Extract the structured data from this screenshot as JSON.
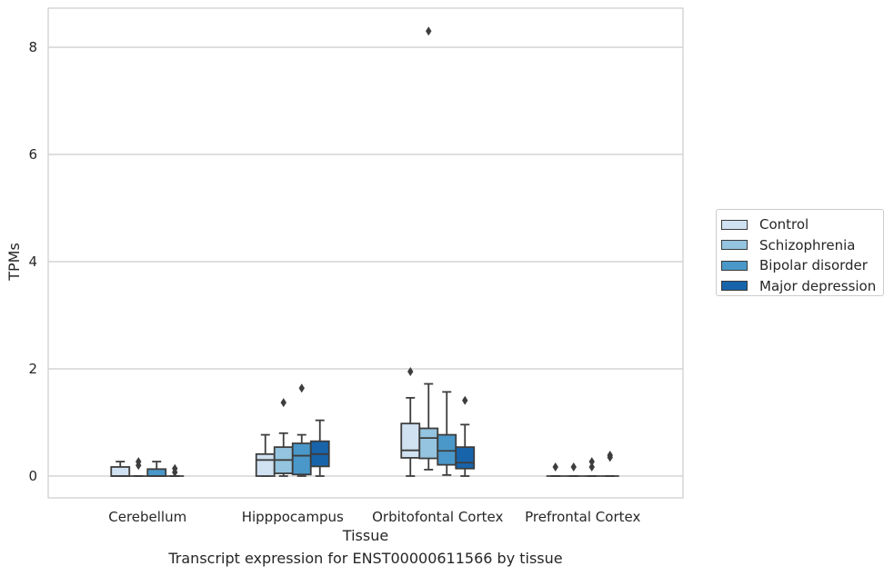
{
  "chart_data": {
    "type": "box",
    "xlabel": "Tissue",
    "ylabel": "TPMs",
    "caption": "Transcript expression for ENST00000611566 by tissue",
    "categories": [
      "Cerebellum",
      "Hipppocampus",
      "Orbitofontal Cortex",
      "Prefrontal Cortex"
    ],
    "ylim": [
      -0.4,
      8.72
    ],
    "yticks": [
      0,
      2,
      4,
      6,
      8
    ],
    "grid": "horizontal",
    "legend_position": "right",
    "series": [
      {
        "name": "Control",
        "color": "#d0e1f2",
        "boxes": [
          {
            "whislo": 0,
            "q1": 0,
            "med": 0,
            "q3": 0.17,
            "whishi": 0.27,
            "fliers": []
          },
          {
            "whislo": 0,
            "q1": 0,
            "med": 0.3,
            "q3": 0.41,
            "whishi": 0.77,
            "fliers": []
          },
          {
            "whislo": 0,
            "q1": 0.34,
            "med": 0.48,
            "q3": 0.98,
            "whishi": 1.46,
            "fliers": [
              1.95
            ]
          },
          {
            "whislo": 0,
            "q1": 0,
            "med": 0,
            "q3": 0,
            "whishi": 0,
            "fliers": [
              0.17
            ]
          }
        ]
      },
      {
        "name": "Schizophrenia",
        "color": "#94c4df",
        "boxes": [
          {
            "whislo": 0,
            "q1": 0,
            "med": 0,
            "q3": 0,
            "whishi": 0,
            "fliers": [
              0.2,
              0.27
            ]
          },
          {
            "whislo": 0,
            "q1": 0.05,
            "med": 0.3,
            "q3": 0.54,
            "whishi": 0.8,
            "fliers": [
              1.37
            ]
          },
          {
            "whislo": 0.12,
            "q1": 0.33,
            "med": 0.71,
            "q3": 0.89,
            "whishi": 1.72,
            "fliers": [
              8.3
            ]
          },
          {
            "whislo": 0,
            "q1": 0,
            "med": 0,
            "q3": 0,
            "whishi": 0,
            "fliers": [
              0.17
            ]
          }
        ]
      },
      {
        "name": "Bipolar disorder",
        "color": "#4a98c9",
        "boxes": [
          {
            "whislo": 0,
            "q1": 0,
            "med": 0,
            "q3": 0.13,
            "whishi": 0.27,
            "fliers": []
          },
          {
            "whislo": 0,
            "q1": 0.03,
            "med": 0.38,
            "q3": 0.61,
            "whishi": 0.77,
            "fliers": [
              1.64
            ]
          },
          {
            "whislo": 0.02,
            "q1": 0.21,
            "med": 0.47,
            "q3": 0.77,
            "whishi": 1.57,
            "fliers": []
          },
          {
            "whislo": 0,
            "q1": 0,
            "med": 0,
            "q3": 0,
            "whishi": 0,
            "fliers": [
              0.17,
              0.27
            ]
          }
        ]
      },
      {
        "name": "Major depression",
        "color": "#1764ab",
        "boxes": [
          {
            "whislo": 0,
            "q1": 0,
            "med": 0,
            "q3": 0,
            "whishi": 0,
            "fliers": [
              0.07,
              0.14
            ]
          },
          {
            "whislo": 0,
            "q1": 0.18,
            "med": 0.41,
            "q3": 0.65,
            "whishi": 1.04,
            "fliers": []
          },
          {
            "whislo": 0,
            "q1": 0.14,
            "med": 0.25,
            "q3": 0.54,
            "whishi": 0.96,
            "fliers": [
              1.41
            ]
          },
          {
            "whislo": 0,
            "q1": 0,
            "med": 0,
            "q3": 0,
            "whishi": 0,
            "fliers": [
              0.35,
              0.39
            ]
          }
        ]
      }
    ]
  }
}
